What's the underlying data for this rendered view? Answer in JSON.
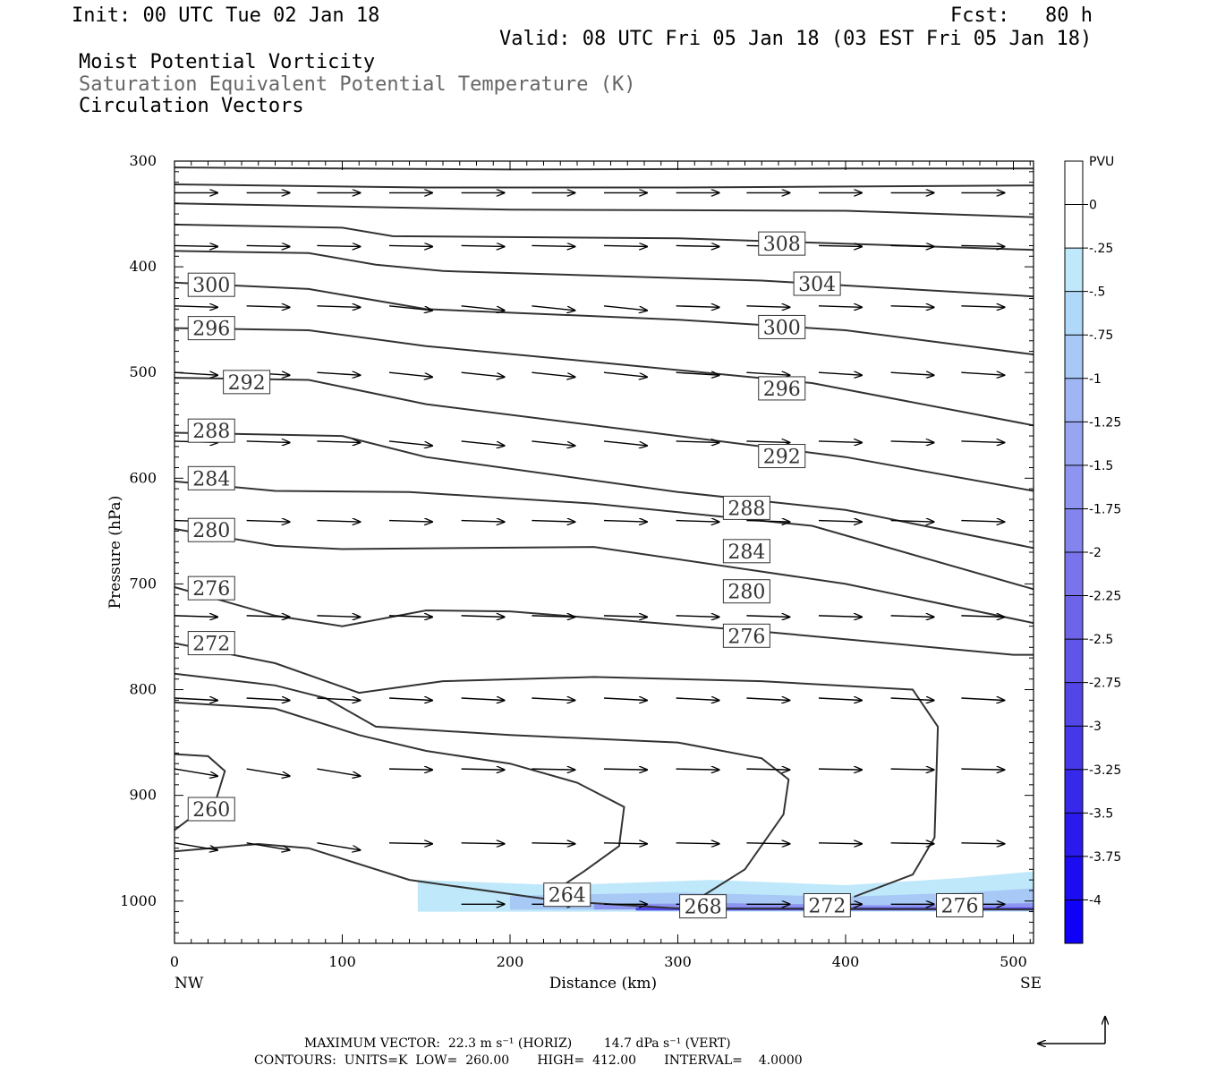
{
  "header": {
    "init": "Init: 00 UTC Tue 02 Jan 18",
    "fcst": "Fcst:   80 h",
    "valid": "Valid: 08 UTC Fri 05 Jan 18 (03 EST Fri 05 Jan 18)"
  },
  "legend": {
    "line1": "Moist Potential Vorticity",
    "line2": "Saturation Equivalent Potential Temperature (K)",
    "line3": "Circulation Vectors"
  },
  "footer": {
    "max_vector": "MAXIMUM VECTOR:  22.3 m s⁻¹ (HORIZ)        14.7 dPa s⁻¹ (VERT)",
    "contours": "CONTOURS:  UNITS=K  LOW=  260.00       HIGH=  412.00       INTERVAL=    4.0000"
  },
  "colorbar": {
    "title": "PVU",
    "labels": [
      "0",
      "-.25",
      "-.5",
      "-.75",
      "-1",
      "-1.25",
      "-1.5",
      "-1.75",
      "-2",
      "-2.25",
      "-2.5",
      "-2.75",
      "-3",
      "-3.25",
      "-3.5",
      "-3.75",
      "-4"
    ],
    "colors": [
      "#ffffff",
      "#ffffff",
      "#bfe8fa",
      "#b0d8f8",
      "#a8c8f6",
      "#a0b6f4",
      "#98a6f2",
      "#8e95f0",
      "#8484ee",
      "#7a74ec",
      "#6e64ea",
      "#6055e8",
      "#5246e6",
      "#4438e8",
      "#3629ea",
      "#2a1aee",
      "#1c0cf2",
      "#0f00f8"
    ]
  },
  "chart_data": {
    "type": "cross-section",
    "xlabel": "Distance (km)",
    "ylabel": "Pressure (hPa)",
    "xlim": [
      0,
      512
    ],
    "ylim": [
      300,
      1040
    ],
    "x_ticks": [
      0,
      100,
      200,
      300,
      400,
      500
    ],
    "y_ticks": [
      300,
      400,
      500,
      600,
      700,
      800,
      900,
      1000
    ],
    "x_end_labels": {
      "left": "NW",
      "right": "SE"
    },
    "contour_levels": [
      {
        "label": "308",
        "km": 362,
        "hpa": 378
      },
      {
        "label": "304",
        "km": 383,
        "hpa": 416
      },
      {
        "label": "300",
        "km": 22,
        "hpa": 417
      },
      {
        "label": "300",
        "km": 362,
        "hpa": 457
      },
      {
        "label": "296",
        "km": 22,
        "hpa": 458
      },
      {
        "label": "296",
        "km": 362,
        "hpa": 515
      },
      {
        "label": "292",
        "km": 43,
        "hpa": 509
      },
      {
        "label": "292",
        "km": 362,
        "hpa": 579
      },
      {
        "label": "288",
        "km": 22,
        "hpa": 555
      },
      {
        "label": "288",
        "km": 341,
        "hpa": 628
      },
      {
        "label": "284",
        "km": 22,
        "hpa": 600
      },
      {
        "label": "284",
        "km": 341,
        "hpa": 669
      },
      {
        "label": "280",
        "km": 22,
        "hpa": 649
      },
      {
        "label": "280",
        "km": 341,
        "hpa": 707
      },
      {
        "label": "276",
        "km": 22,
        "hpa": 704
      },
      {
        "label": "276",
        "km": 341,
        "hpa": 749
      },
      {
        "label": "272",
        "km": 22,
        "hpa": 756
      },
      {
        "label": "272",
        "km": 389,
        "hpa": 1004
      },
      {
        "label": "268",
        "km": 315,
        "hpa": 1005
      },
      {
        "label": "264",
        "km": 234,
        "hpa": 994
      },
      {
        "label": "260",
        "km": 22,
        "hpa": 913
      },
      {
        "label": "276",
        "km": 468,
        "hpa": 1004
      }
    ]
  }
}
